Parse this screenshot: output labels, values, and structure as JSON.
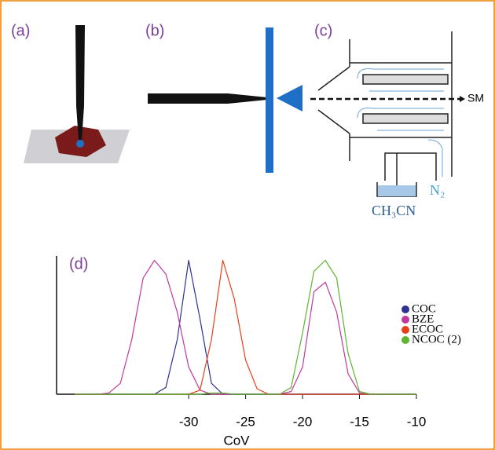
{
  "panels": {
    "a": "(a)",
    "b": "(b)",
    "c": "(c)",
    "d": "(d)"
  },
  "diagram": {
    "outlet": "SM",
    "gas": "N₂",
    "solvent": "CH₃CN"
  },
  "chart_data": {
    "type": "line",
    "xlabel": "CoV",
    "x": [
      -40,
      -39,
      -38,
      -37,
      -36,
      -35,
      -34,
      -33,
      -32,
      -31,
      -30,
      -29,
      -28,
      -27,
      -26,
      -25,
      -24,
      -23,
      -22,
      -21,
      -20,
      -19,
      -18,
      -17,
      -16,
      -15,
      -14,
      -13,
      -12,
      -11,
      -10
    ],
    "series": [
      {
        "name": "COC",
        "color": "#2e3192",
        "values": [
          0,
          0,
          0,
          0,
          0,
          0,
          0,
          0,
          5,
          40,
          98,
          55,
          8,
          0,
          0,
          0,
          0,
          0,
          0,
          0,
          0,
          0,
          0,
          0,
          0,
          0,
          0,
          0,
          0,
          0,
          0
        ]
      },
      {
        "name": "BZE",
        "color": "#c0399e",
        "values": [
          0,
          0,
          0,
          1,
          8,
          40,
          85,
          98,
          88,
          60,
          20,
          3,
          0,
          0,
          0,
          0,
          0,
          0,
          0,
          2,
          20,
          75,
          82,
          60,
          15,
          1,
          0,
          0,
          0,
          0,
          0
        ]
      },
      {
        "name": "ECOC",
        "color": "#e8401c",
        "values": [
          0,
          0,
          0,
          0,
          0,
          0,
          0,
          0,
          0,
          0,
          0,
          3,
          40,
          98,
          70,
          25,
          4,
          0,
          0,
          0,
          0,
          0,
          0,
          0,
          0,
          0,
          0,
          0,
          0,
          0,
          0
        ]
      },
      {
        "name": "NCOC (2)",
        "color": "#5cb531",
        "values": [
          0,
          0,
          0,
          0,
          0,
          0,
          0,
          0,
          0,
          0,
          0,
          0,
          1,
          1,
          0,
          0,
          0,
          0,
          0,
          5,
          45,
          90,
          98,
          85,
          30,
          2,
          0,
          0,
          0,
          0,
          0
        ]
      }
    ],
    "xlim": [
      -41.6,
      -10
    ],
    "xticks": [
      -30,
      -25,
      -20,
      -15,
      -10
    ],
    "ylim": [
      0,
      100
    ]
  }
}
